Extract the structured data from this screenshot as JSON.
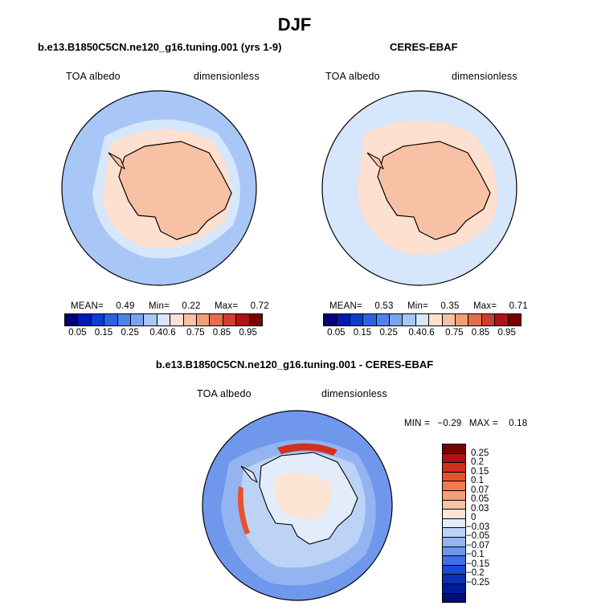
{
  "figure_title": "DJF",
  "chart_data": [
    {
      "type": "heatmap",
      "projection": "south polar stereographic",
      "title": "b.e13.B1850C5CN.ne120_g16.tuning.001 (yrs 1-9)",
      "left_label": "TOA albedo",
      "right_label": "dimensionless",
      "stats": {
        "mean_label": "MEAN=",
        "mean": "0.49",
        "min_label": "Min=",
        "min": "0.22",
        "max_label": "Max=",
        "max": "0.72"
      },
      "levels": [
        "0.05",
        "0.15",
        "0.25",
        "0.4",
        "0.6",
        "0.75",
        "0.85",
        "0.95"
      ]
    },
    {
      "type": "heatmap",
      "projection": "south polar stereographic",
      "title": "CERES-EBAF",
      "left_label": "TOA albedo",
      "right_label": "dimensionless",
      "stats": {
        "mean_label": "MEAN=",
        "mean": "0.53",
        "min_label": "Min=",
        "min": "0.35",
        "max_label": "Max=",
        "max": "0.71"
      },
      "levels": [
        "0.05",
        "0.15",
        "0.25",
        "0.4",
        "0.6",
        "0.75",
        "0.85",
        "0.95"
      ]
    },
    {
      "type": "heatmap",
      "projection": "south polar stereographic",
      "title": "b.e13.B1850C5CN.ne120_g16.tuning.001 - CERES-EBAF",
      "left_label": "TOA albedo",
      "right_label": "dimensionless",
      "stats": {
        "min_label": "MIN =",
        "min": "−0.29",
        "max_label": "MAX =",
        "max": "0.18"
      },
      "levels": [
        "0.25",
        "0.2",
        "0.15",
        "0.1",
        "0.07",
        "0.05",
        "0.03",
        "0",
        "−0.03",
        "−0.05",
        "−0.07",
        "−0.1",
        "−0.15",
        "−0.2",
        "−0.25"
      ]
    }
  ],
  "palettes": {
    "absolute": [
      "#00007a",
      "#0018b5",
      "#0a3ed2",
      "#2a62e6",
      "#4e82ee",
      "#7aa4f2",
      "#a8c6f6",
      "#d6e6fb",
      "#fde0cf",
      "#f8c1a5",
      "#f19e79",
      "#e66d4c",
      "#d33e29",
      "#b01313",
      "#7a0000"
    ],
    "difference": [
      "#7a0000",
      "#b51010",
      "#d3301c",
      "#e9512e",
      "#f37a4f",
      "#f59f77",
      "#f7c2a5",
      "#fbe4d4",
      "#e2ecfb",
      "#bcd3f6",
      "#93b4f0",
      "#6f97ec",
      "#3f6ee5",
      "#1d47d5",
      "#0b2fba",
      "#001c9b",
      "#000c7a"
    ]
  }
}
